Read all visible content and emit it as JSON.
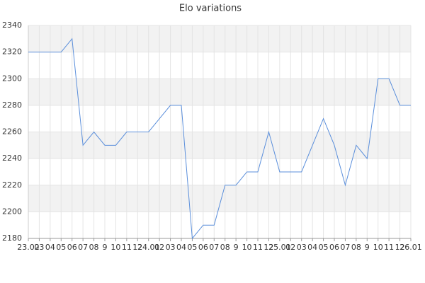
{
  "chart_data": {
    "type": "line",
    "title": "Elo variations",
    "categories": [
      "23.02",
      "03",
      "04",
      "05",
      "06",
      "07",
      "08",
      "9",
      "10",
      "11",
      "12",
      "24.01",
      "02",
      "03",
      "04",
      "05",
      "06",
      "07",
      "08",
      "9",
      "10",
      "11",
      "12",
      "25.01",
      "02",
      "03",
      "04",
      "05",
      "06",
      "07",
      "08",
      "9",
      "10",
      "11",
      "12",
      "26.01"
    ],
    "values": [
      2320,
      2320,
      2320,
      2320,
      2330,
      2250,
      2260,
      2250,
      2250,
      2260,
      2260,
      2260,
      2270,
      2280,
      2280,
      2180,
      2190,
      2190,
      2220,
      2220,
      2230,
      2230,
      2260,
      2230,
      2230,
      2230,
      2250,
      2270,
      2250,
      2220,
      2250,
      2240,
      2300,
      2300,
      2280,
      2280
    ],
    "color": "#5b8fdb",
    "ylim": [
      2180,
      2340
    ],
    "yticks": [
      2180,
      2200,
      2220,
      2240,
      2260,
      2280,
      2300,
      2320,
      2340
    ],
    "grid": true,
    "bands": true
  }
}
